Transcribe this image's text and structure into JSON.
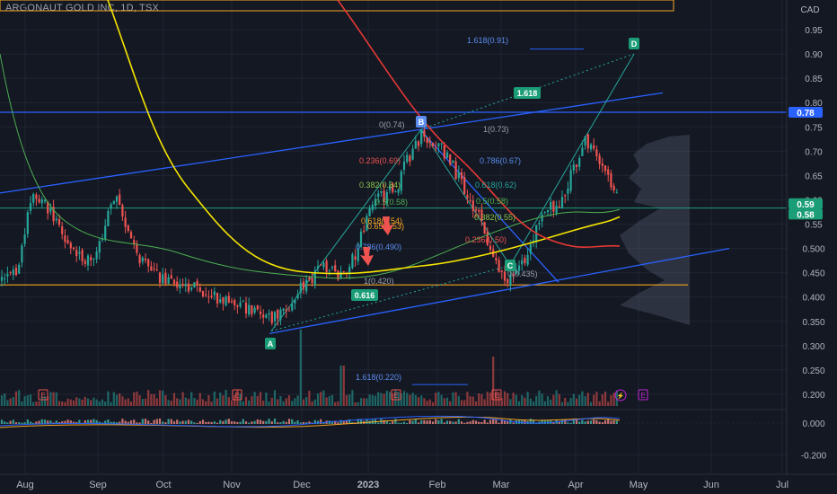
{
  "symbol_title": "ARGONAUT GOLD INC, 1D, TSX",
  "currency": "CAD",
  "colors": {
    "background": "#141823",
    "up": "#26a69a",
    "down": "#ef5350",
    "grid": "#1f2433",
    "axis_text": "#b2b5be",
    "blue_line": "#2962ff",
    "orange_line": "#f5a623",
    "yellow_ma": "#f5e400",
    "red_ma": "#e53935",
    "green_ma": "#4caf50",
    "green_price": "#1b9e77"
  },
  "chart_data": {
    "type": "candlestick",
    "y_axis": {
      "scale": "linear",
      "range": [
        -0.2,
        1.0
      ],
      "ticks": [
        "0.95",
        "0.90",
        "0.85",
        "0.80",
        "0.75",
        "0.70",
        "0.65",
        "0.60",
        "0.55",
        "0.500",
        "0.450",
        "0.400",
        "0.350",
        "0.300",
        "0.250",
        "0.200",
        "0.000",
        "-0.200"
      ]
    },
    "x_axis": {
      "ticks": [
        "Aug",
        "Sep",
        "Oct",
        "Nov",
        "Dec",
        "2023",
        "Feb",
        "Mar",
        "Apr",
        "May",
        "Jun",
        "Jul"
      ]
    },
    "price_badges": [
      {
        "value": "0.78",
        "color": "#2962ff"
      },
      {
        "value": "0.59",
        "color": "#1b9e77"
      },
      {
        "value": "0.58",
        "color": "#1b9e77"
      }
    ],
    "fib_labels": [
      {
        "text": "1.618(0.91)",
        "color": "#5b8def"
      },
      {
        "text": "0(0.74)",
        "color": "#9aa0ad"
      },
      {
        "text": "1(0.73)",
        "color": "#9aa0ad"
      },
      {
        "text": "0.236(0.69)",
        "color": "#ef5350"
      },
      {
        "text": "0.786(0.67)",
        "color": "#5b8def"
      },
      {
        "text": "0.382(0.64)",
        "color": "#8bc34a"
      },
      {
        "text": "0.618(0.62)",
        "color": "#26a69a"
      },
      {
        "text": "0.5(0.58)",
        "color": "#4caf50"
      },
      {
        "text": "0.5(0.58)",
        "color": "#4caf50"
      },
      {
        "text": "0.618(0.54)",
        "color": "#f5a623"
      },
      {
        "text": "0.382(0.55)",
        "color": "#8bc34a"
      },
      {
        "text": "0.65(0.53)",
        "color": "#f5a623"
      },
      {
        "text": "0.236(0.50)",
        "color": "#ef5350"
      },
      {
        "text": "0.786(0.490)",
        "color": "#5b8def"
      },
      {
        "text": "1(0.420)",
        "color": "#9aa0ad"
      },
      {
        "text": "0(0.435)",
        "color": "#9aa0ad"
      },
      {
        "text": "1.618(0.220)",
        "color": "#5b8def"
      }
    ],
    "badges": [
      {
        "text": "1.618"
      },
      {
        "text": "0.616"
      }
    ],
    "points": [
      "A",
      "B",
      "C",
      "D"
    ],
    "earnings_markers": [
      "E",
      "E",
      "E",
      "E",
      "E"
    ]
  }
}
